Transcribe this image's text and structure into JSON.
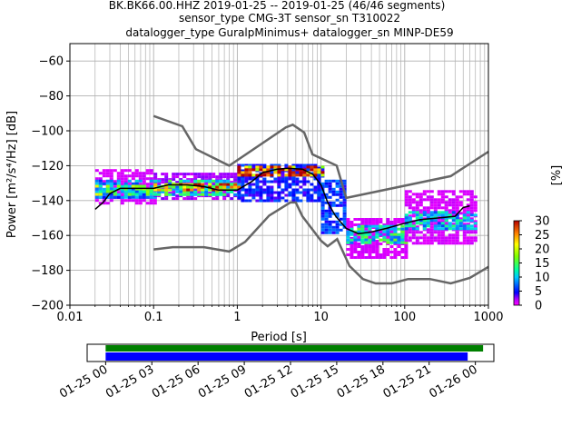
{
  "title": {
    "line1": "BK.BK66.00.HHZ   2019-01-25 -- 2019-01-25  (46/46 segments)",
    "line2": "sensor_type CMG-3T sensor_sn T310022",
    "line3": "datalogger_type GuralpMinimus+ datalogger_sn MINP-DE59"
  },
  "colors": {
    "percentile_curve": "#000000",
    "noise_model": "#666666",
    "grid": "#b0b0b0",
    "coverage_full": "#008000",
    "coverage_used": "#0000ff"
  },
  "chart_data": {
    "type": "heatmap",
    "title": "BK.BK66.00.HHZ   2019-01-25 -- 2019-01-25  (46/46 segments)",
    "xlabel": "Period [s]",
    "ylabel": "Power [m²/s⁴/Hz] [dB]",
    "x_scale": "log",
    "xlim": [
      0.01,
      1000
    ],
    "ylim": [
      -200,
      -50
    ],
    "xtick_labels": [
      "0.01",
      "0.1",
      "1",
      "10",
      "100",
      "1000"
    ],
    "ytick_labels": [
      "−60",
      "−80",
      "−100",
      "−120",
      "−140",
      "−160",
      "−180",
      "−200"
    ],
    "ytick_values": [
      -60,
      -80,
      -100,
      -120,
      -140,
      -160,
      -180,
      -200
    ],
    "grid": true,
    "colorbar": {
      "label": "[%]",
      "range": [
        0,
        30
      ],
      "tick_labels": [
        "0",
        "5",
        "10",
        "15",
        "20",
        "25",
        "30"
      ],
      "colormap": "pqlx"
    },
    "psd_mode_curve": [
      [
        0.02,
        -145
      ],
      [
        0.025,
        -141
      ],
      [
        0.03,
        -136
      ],
      [
        0.04,
        -133
      ],
      [
        0.06,
        -133
      ],
      [
        0.1,
        -133
      ],
      [
        0.15,
        -131
      ],
      [
        0.25,
        -131
      ],
      [
        0.4,
        -132
      ],
      [
        0.6,
        -134
      ],
      [
        1.0,
        -134
      ],
      [
        1.5,
        -129
      ],
      [
        2.0,
        -124
      ],
      [
        3.0,
        -122
      ],
      [
        4.0,
        -121.5
      ],
      [
        6.0,
        -122
      ],
      [
        8.0,
        -125
      ],
      [
        10.0,
        -131
      ],
      [
        12.0,
        -141
      ],
      [
        15.0,
        -149
      ],
      [
        20.0,
        -156
      ],
      [
        28.0,
        -159
      ],
      [
        40.0,
        -158
      ],
      [
        60.0,
        -156
      ],
      [
        100.0,
        -153
      ],
      [
        150.0,
        -151
      ],
      [
        250.0,
        -150
      ],
      [
        400.0,
        -149
      ],
      [
        500.0,
        -144
      ],
      [
        600.0,
        -143
      ]
    ],
    "density_cells": [
      {
        "x": [
          0.02,
          0.1
        ],
        "ymin": -141,
        "ymax": -122,
        "pct": 1
      },
      {
        "x": [
          0.02,
          0.1
        ],
        "ymin": -138,
        "ymax": -128,
        "pct": 8
      },
      {
        "x": [
          0.02,
          0.1
        ],
        "ymin": -136,
        "ymax": -131,
        "pct": 15
      },
      {
        "x": [
          0.1,
          1.0
        ],
        "ymin": -139,
        "ymax": -124,
        "pct": 2
      },
      {
        "x": [
          0.1,
          1.0
        ],
        "ymin": -136,
        "ymax": -128,
        "pct": 12
      },
      {
        "x": [
          0.1,
          1.0
        ],
        "ymin": -134,
        "ymax": -130,
        "pct": 24
      },
      {
        "x": [
          1.0,
          10.0
        ],
        "ymin": -140,
        "ymax": -119,
        "pct": 5
      },
      {
        "x": [
          1.0,
          10.0
        ],
        "ymin": -126,
        "ymax": -120,
        "pct": 28
      },
      {
        "x": [
          10.0,
          20.0
        ],
        "ymin": -158,
        "ymax": -128,
        "pct": 6
      },
      {
        "x": [
          20.0,
          100.0
        ],
        "ymin": -173,
        "ymax": -150,
        "pct": 1
      },
      {
        "x": [
          20.0,
          100.0
        ],
        "ymin": -164,
        "ymax": -154,
        "pct": 12
      },
      {
        "x": [
          100.0,
          700.0
        ],
        "ymin": -165,
        "ymax": -134,
        "pct": 1
      },
      {
        "x": [
          100.0,
          700.0
        ],
        "ymin": -156,
        "ymax": -146,
        "pct": 10
      }
    ],
    "noise_models": [
      {
        "name": "NHNM",
        "points": [
          [
            0.1,
            -91.5
          ],
          [
            0.22,
            -97.4
          ],
          [
            0.32,
            -110.5
          ],
          [
            0.8,
            -120
          ],
          [
            3.8,
            -98
          ],
          [
            4.6,
            -96.5
          ],
          [
            6.3,
            -101
          ],
          [
            7.9,
            -113.5
          ],
          [
            15.4,
            -120
          ],
          [
            20,
            -138.5
          ],
          [
            354.8,
            -126
          ],
          [
            1000,
            -112
          ]
        ]
      },
      {
        "name": "NLNM",
        "points": [
          [
            0.1,
            -168
          ],
          [
            0.17,
            -166.7
          ],
          [
            0.4,
            -166.7
          ],
          [
            0.8,
            -169.2
          ],
          [
            1.24,
            -163.7
          ],
          [
            2.4,
            -148.6
          ],
          [
            4.3,
            -141.1
          ],
          [
            5.0,
            -141.1
          ],
          [
            6.0,
            -149
          ],
          [
            10.0,
            -163
          ],
          [
            12.0,
            -166.2
          ],
          [
            15.6,
            -162.1
          ],
          [
            21.9,
            -177.5
          ],
          [
            31.6,
            -185
          ],
          [
            45.0,
            -187.5
          ],
          [
            70.0,
            -187.5
          ],
          [
            110.0,
            -185
          ],
          [
            200.0,
            -185
          ],
          [
            354.8,
            -187.5
          ],
          [
            600.0,
            -184.4
          ],
          [
            1000.0,
            -178
          ]
        ]
      }
    ],
    "coverage": {
      "tick_labels": [
        "01-25 00",
        "01-25 03",
        "01-25 06",
        "01-25 09",
        "01-25 12",
        "01-25 15",
        "01-25 18",
        "01-25 21",
        "01-26 00"
      ],
      "tick_hours": [
        0,
        3,
        6,
        9,
        12,
        15,
        18,
        21,
        24
      ],
      "range_hours": [
        -1.2,
        25.2
      ],
      "full_bar": [
        0,
        24.5
      ],
      "used_bar": [
        0,
        23.5
      ]
    }
  }
}
